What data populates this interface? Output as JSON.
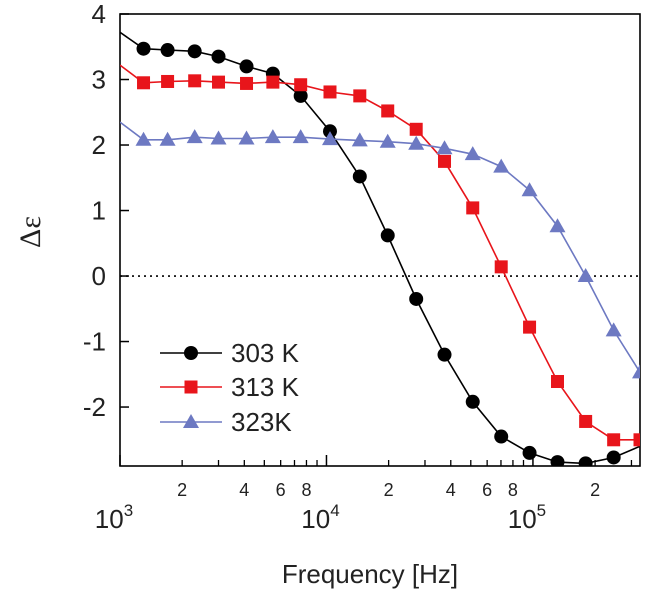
{
  "chart_data": {
    "type": "line",
    "title": "",
    "xlabel": "Frequency [Hz]",
    "ylabel": "Δε",
    "xscale": "log",
    "xlim": [
      1000,
      330000
    ],
    "ylim": [
      -2.9,
      4
    ],
    "grid": false,
    "legend_position": "bottom-left",
    "reference_line": {
      "y": 0,
      "style": "dotted"
    },
    "y_ticks": [
      {
        "value": 4,
        "label": "4"
      },
      {
        "value": 3,
        "label": "3"
      },
      {
        "value": 2,
        "label": "2"
      },
      {
        "value": 1,
        "label": "1"
      },
      {
        "value": 0,
        "label": "0"
      },
      {
        "value": -1,
        "label": "-1"
      },
      {
        "value": -2,
        "label": "-2"
      }
    ],
    "x_major_ticks": [
      {
        "value": 1000,
        "base": "10",
        "exp": "3"
      },
      {
        "value": 10000,
        "base": "10",
        "exp": "4"
      },
      {
        "value": 100000,
        "base": "10",
        "exp": "5"
      }
    ],
    "x_minor_ticks": [
      {
        "value": 2000,
        "label": "2"
      },
      {
        "value": 3000,
        "label": ""
      },
      {
        "value": 4000,
        "label": "4"
      },
      {
        "value": 5000,
        "label": ""
      },
      {
        "value": 6000,
        "label": "6"
      },
      {
        "value": 7000,
        "label": ""
      },
      {
        "value": 8000,
        "label": "8"
      },
      {
        "value": 9000,
        "label": ""
      },
      {
        "value": 20000,
        "label": "2"
      },
      {
        "value": 30000,
        "label": ""
      },
      {
        "value": 40000,
        "label": "4"
      },
      {
        "value": 50000,
        "label": ""
      },
      {
        "value": 60000,
        "label": "6"
      },
      {
        "value": 70000,
        "label": ""
      },
      {
        "value": 80000,
        "label": "8"
      },
      {
        "value": 90000,
        "label": ""
      },
      {
        "value": 200000,
        "label": "2"
      },
      {
        "value": 300000,
        "label": ""
      }
    ],
    "series": [
      {
        "name": "303 K",
        "color": "#000000",
        "marker": "circle",
        "points": [
          [
            1300,
            3.47
          ],
          [
            1700,
            3.45
          ],
          [
            2300,
            3.43
          ],
          [
            3000,
            3.35
          ],
          [
            4100,
            3.2
          ],
          [
            5500,
            3.09
          ],
          [
            7500,
            2.75
          ],
          [
            10400,
            2.21
          ],
          [
            14500,
            1.52
          ],
          [
            19800,
            0.62
          ],
          [
            27200,
            -0.35
          ],
          [
            37300,
            -1.2
          ],
          [
            51100,
            -1.92
          ],
          [
            70200,
            -2.45
          ],
          [
            96300,
            -2.7
          ],
          [
            131500,
            -2.84
          ],
          [
            180000,
            -2.86
          ],
          [
            246000,
            -2.77
          ]
        ],
        "curve": [
          [
            1000,
            3.72
          ],
          [
            1300,
            3.47
          ],
          [
            1700,
            3.45
          ],
          [
            2300,
            3.43
          ],
          [
            3000,
            3.35
          ],
          [
            4100,
            3.2
          ],
          [
            5500,
            3.09
          ],
          [
            7500,
            2.75
          ],
          [
            10400,
            2.21
          ],
          [
            14500,
            1.52
          ],
          [
            19800,
            0.62
          ],
          [
            27200,
            -0.35
          ],
          [
            37300,
            -1.2
          ],
          [
            51100,
            -1.92
          ],
          [
            70200,
            -2.45
          ],
          [
            96300,
            -2.7
          ],
          [
            131500,
            -2.84
          ],
          [
            180000,
            -2.86
          ],
          [
            246000,
            -2.77
          ],
          [
            330000,
            -2.6
          ]
        ]
      },
      {
        "name": "313 K",
        "color": "#e8151b",
        "marker": "square",
        "points": [
          [
            1300,
            2.95
          ],
          [
            1700,
            2.97
          ],
          [
            2300,
            2.98
          ],
          [
            3000,
            2.96
          ],
          [
            4100,
            2.94
          ],
          [
            5500,
            2.96
          ],
          [
            7500,
            2.92
          ],
          [
            10400,
            2.81
          ],
          [
            14500,
            2.75
          ],
          [
            19800,
            2.52
          ],
          [
            27200,
            2.24
          ],
          [
            37300,
            1.75
          ],
          [
            51100,
            1.04
          ],
          [
            70200,
            0.14
          ],
          [
            96300,
            -0.78
          ],
          [
            131500,
            -1.61
          ],
          [
            180000,
            -2.22
          ],
          [
            246000,
            -2.5
          ],
          [
            330000,
            -2.5
          ]
        ],
        "curve": [
          [
            1000,
            3.22
          ],
          [
            1300,
            2.95
          ],
          [
            1700,
            2.97
          ],
          [
            2300,
            2.98
          ],
          [
            3000,
            2.96
          ],
          [
            4100,
            2.94
          ],
          [
            5500,
            2.96
          ],
          [
            7500,
            2.92
          ],
          [
            10400,
            2.81
          ],
          [
            14500,
            2.75
          ],
          [
            19800,
            2.52
          ],
          [
            27200,
            2.24
          ],
          [
            37300,
            1.75
          ],
          [
            51100,
            1.04
          ],
          [
            70200,
            0.14
          ],
          [
            96300,
            -0.78
          ],
          [
            131500,
            -1.61
          ],
          [
            180000,
            -2.22
          ],
          [
            246000,
            -2.5
          ],
          [
            330000,
            -2.5
          ]
        ]
      },
      {
        "name": "323K",
        "color": "#6d79c2",
        "marker": "triangle",
        "points": [
          [
            1300,
            2.08
          ],
          [
            1700,
            2.08
          ],
          [
            2300,
            2.12
          ],
          [
            3000,
            2.1
          ],
          [
            4100,
            2.1
          ],
          [
            5500,
            2.12
          ],
          [
            7500,
            2.12
          ],
          [
            10400,
            2.09
          ],
          [
            14500,
            2.07
          ],
          [
            19800,
            2.05
          ],
          [
            27200,
            2.02
          ],
          [
            37300,
            1.95
          ],
          [
            51100,
            1.86
          ],
          [
            70200,
            1.67
          ],
          [
            96300,
            1.31
          ],
          [
            131500,
            0.76
          ],
          [
            180000,
            0.0
          ],
          [
            246000,
            -0.83
          ],
          [
            330000,
            -1.47
          ]
        ],
        "curve": [
          [
            1000,
            2.35
          ],
          [
            1300,
            2.08
          ],
          [
            1700,
            2.08
          ],
          [
            2300,
            2.12
          ],
          [
            3000,
            2.1
          ],
          [
            4100,
            2.1
          ],
          [
            5500,
            2.12
          ],
          [
            7500,
            2.12
          ],
          [
            10400,
            2.09
          ],
          [
            14500,
            2.07
          ],
          [
            19800,
            2.05
          ],
          [
            27200,
            2.02
          ],
          [
            37300,
            1.95
          ],
          [
            51100,
            1.86
          ],
          [
            70200,
            1.67
          ],
          [
            96300,
            1.31
          ],
          [
            131500,
            0.76
          ],
          [
            180000,
            0.0
          ],
          [
            246000,
            -0.83
          ],
          [
            330000,
            -1.47
          ]
        ]
      }
    ]
  }
}
